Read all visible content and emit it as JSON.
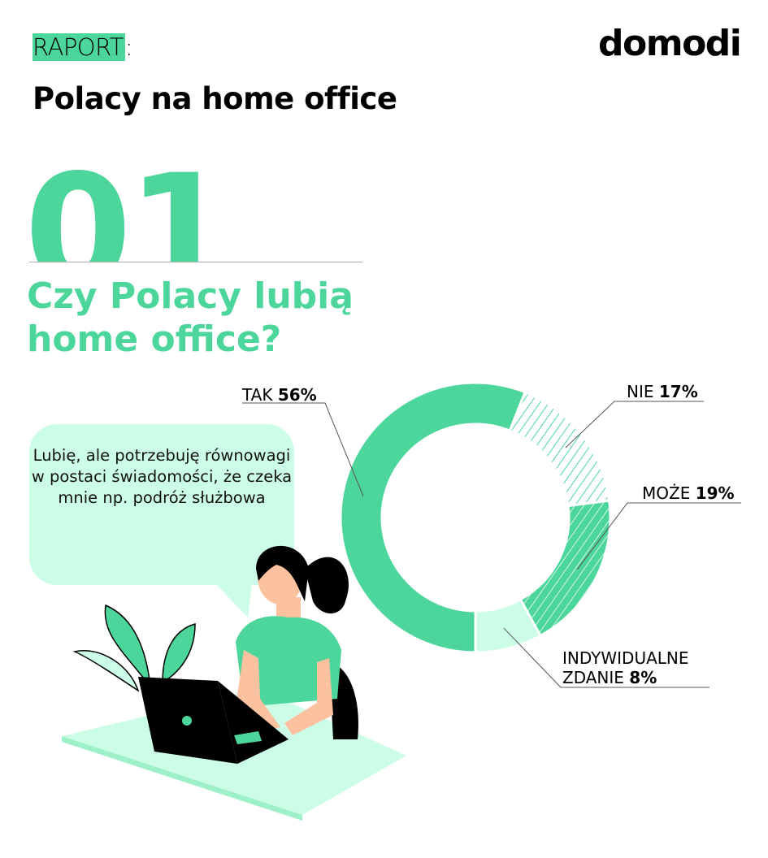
{
  "header": {
    "kicker": "RAPORT",
    "kicker_colon": ":",
    "title": "Polacy na home office",
    "logo": "domodi"
  },
  "section": {
    "number": "01",
    "question": "Czy Polacy lubią home office?"
  },
  "quote": "Lubię, ale potrzebuję równowagi w postaci świadomości, że czeka mnie np. podróż służbowa",
  "colors": {
    "accent": "#4cd69b",
    "light": "#ccfde6",
    "text": "#000000"
  },
  "chart_data": {
    "type": "pie",
    "style": "donut",
    "start": "bottom, clockwise",
    "slices": [
      {
        "label": "TAK",
        "value": 56,
        "value_label": "56%",
        "fill": "solid",
        "color": "#4cd69b"
      },
      {
        "label": "NIE",
        "value": 17,
        "value_label": "17%",
        "fill": "hatched-light",
        "color": "#4cd69b"
      },
      {
        "label": "MOŻE",
        "value": 19,
        "value_label": "19%",
        "fill": "hatched-solid",
        "color": "#4cd69b"
      },
      {
        "label": "INDYWIDUALNE ZDANIE",
        "label_line1": "INDYWIDUALNE",
        "label_line2": "ZDANIE",
        "value": 8,
        "value_label": "8%",
        "fill": "solid",
        "color": "#ccfde6"
      }
    ]
  }
}
